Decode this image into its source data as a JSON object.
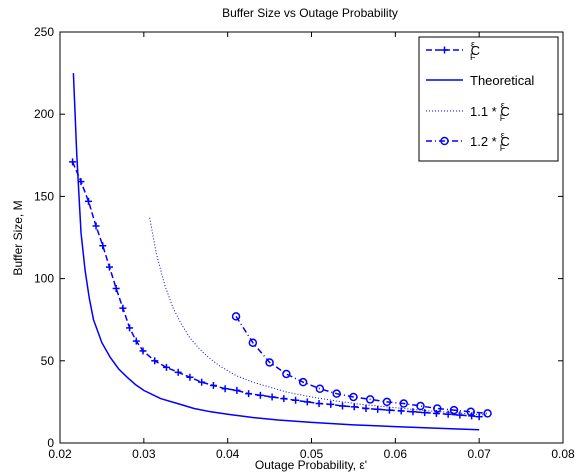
{
  "chart_data": {
    "type": "line",
    "title": "Buffer Size vs Outage Probability",
    "xlabel": "Outage Probability, ε'",
    "ylabel": "Buffer Size, M",
    "xlim": [
      0.02,
      0.08
    ],
    "ylim": [
      0,
      250
    ],
    "xticks": [
      0.02,
      0.03,
      0.04,
      0.05,
      0.06,
      0.07,
      0.08
    ],
    "xtick_labels": [
      "0.02",
      "0.03",
      "0.04",
      "0.05",
      "0.06",
      "0.07",
      "0.08"
    ],
    "yticks": [
      0,
      50,
      100,
      150,
      200,
      250
    ],
    "ytick_labels": [
      "0",
      "50",
      "100",
      "150",
      "200",
      "250"
    ],
    "grid": false,
    "legend_position": "top-right",
    "series": [
      {
        "legend_main": "C",
        "legend_sup": "ε",
        "legend_sub": "F",
        "color": "#0000ff",
        "line_style": "dashed",
        "marker": "plus",
        "x": [
          0.0215,
          0.0225,
          0.0234,
          0.0243,
          0.0251,
          0.0259,
          0.0267,
          0.0275,
          0.0283,
          0.0291,
          0.0299,
          0.0313,
          0.0327,
          0.0341,
          0.0355,
          0.0369,
          0.0383,
          0.0397,
          0.0411,
          0.0425,
          0.0439,
          0.0453,
          0.0467,
          0.0481,
          0.0495,
          0.0509,
          0.0523,
          0.0537,
          0.0551,
          0.0565,
          0.0579,
          0.0593,
          0.0607,
          0.0621,
          0.0635,
          0.0649,
          0.0663,
          0.0677,
          0.0691,
          0.07
        ],
        "y": [
          171,
          159,
          147,
          132,
          120,
          107,
          94,
          82,
          70,
          62,
          56,
          50,
          46,
          43,
          40,
          37,
          35,
          33,
          32,
          30,
          29,
          28,
          27,
          26,
          25,
          24,
          23.5,
          22.5,
          22,
          21,
          20.5,
          20,
          19.5,
          19,
          18.5,
          18,
          17.5,
          17,
          16.5,
          16
        ]
      },
      {
        "legend_main": "Theoretical",
        "color": "#0000ff",
        "line_style": "solid",
        "marker": "none",
        "x": [
          0.0216,
          0.022,
          0.0225,
          0.023,
          0.0235,
          0.024,
          0.025,
          0.026,
          0.027,
          0.028,
          0.029,
          0.03,
          0.032,
          0.034,
          0.036,
          0.038,
          0.04,
          0.043,
          0.046,
          0.05,
          0.055,
          0.06,
          0.065,
          0.07
        ],
        "y": [
          225,
          175,
          128,
          105,
          88,
          75,
          61,
          52,
          45,
          40,
          35.5,
          32,
          27,
          24,
          21,
          19,
          17.5,
          15.5,
          14,
          12.5,
          11,
          10,
          9,
          8
        ]
      },
      {
        "legend_main": "1.1 * C",
        "legend_sup": "ε",
        "legend_sub": "F",
        "color": "#0000ff",
        "line_style": "dotted",
        "marker": "none",
        "x": [
          0.0307,
          0.0315,
          0.0325,
          0.0335,
          0.0345,
          0.0355,
          0.0365,
          0.0375,
          0.039,
          0.041,
          0.043,
          0.045,
          0.047,
          0.05,
          0.053,
          0.056,
          0.06,
          0.064,
          0.068,
          0.071
        ],
        "y": [
          137,
          115,
          96,
          82,
          72,
          64,
          58,
          53,
          47,
          41,
          37,
          34,
          31,
          28,
          25.5,
          23.5,
          21.5,
          19.5,
          18,
          17
        ]
      },
      {
        "legend_main": "1.2 * C",
        "legend_sup": "ε",
        "legend_sub": "F",
        "color": "#0000ff",
        "line_style": "dash-dot",
        "marker": "circle",
        "x": [
          0.041,
          0.043,
          0.045,
          0.047,
          0.049,
          0.051,
          0.053,
          0.055,
          0.057,
          0.059,
          0.061,
          0.063,
          0.065,
          0.067,
          0.069,
          0.071
        ],
        "y": [
          77,
          61,
          49,
          42,
          37,
          33,
          30,
          28,
          26.5,
          25,
          24,
          22.5,
          21,
          20,
          19,
          18
        ]
      }
    ]
  }
}
